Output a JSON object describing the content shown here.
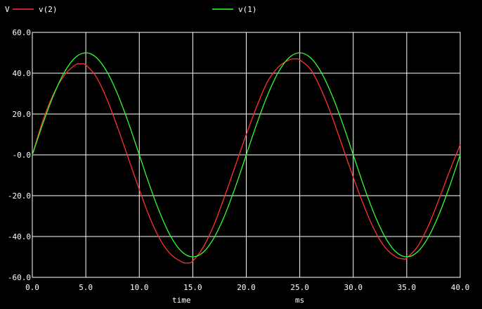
{
  "chart_data": {
    "type": "line",
    "ylabel": "V",
    "xlabel": "time",
    "xunit": "ms",
    "xlim": [
      0,
      40
    ],
    "ylim": [
      -60,
      60
    ],
    "xticks": [
      "0.0",
      "5.0",
      "10.0",
      "15.0",
      "20.0",
      "25.0",
      "30.0",
      "35.0",
      "40.0"
    ],
    "yticks": [
      "60.0",
      "40.0",
      "20.0",
      "-0.0",
      "-20.0",
      "-40.0",
      "-60.0"
    ],
    "grid": true,
    "legend_position": "top",
    "series": [
      {
        "name": "v(2)",
        "color": "#ff3030",
        "x": [
          0,
          1,
          2,
          3,
          4,
          4.5,
          5,
          6,
          7,
          8,
          9,
          10,
          11,
          12,
          13,
          14,
          14.5,
          15,
          16,
          17,
          18,
          19,
          20,
          21,
          22,
          23,
          24,
          24.7,
          25,
          26,
          27,
          28,
          29,
          30,
          31,
          32,
          33,
          34,
          34.7,
          35,
          36,
          37,
          38,
          39,
          40
        ],
        "y": [
          0,
          17,
          30,
          39,
          44,
          44.5,
          44,
          38,
          27,
          13,
          -2,
          -17,
          -31,
          -42,
          -49,
          -52.5,
          -53,
          -52,
          -45,
          -34,
          -20,
          -5,
          10,
          24,
          36,
          43,
          46.5,
          47,
          46.5,
          42,
          32,
          19,
          4,
          -11,
          -25,
          -37,
          -45.5,
          -50,
          -51,
          -50.5,
          -45,
          -35,
          -22,
          -8,
          5
        ]
      },
      {
        "name": "v(1)",
        "color": "#30ff30",
        "x": [
          0,
          1,
          2,
          3,
          4,
          5,
          6,
          7,
          8,
          9,
          10,
          11,
          12,
          13,
          14,
          15,
          16,
          17,
          18,
          19,
          20,
          21,
          22,
          23,
          24,
          25,
          26,
          27,
          28,
          29,
          30,
          31,
          32,
          33,
          34,
          35,
          36,
          37,
          38,
          39,
          40
        ],
        "y": [
          0,
          15.5,
          29.4,
          40.5,
          47.6,
          50,
          47.6,
          40.5,
          29.4,
          15.5,
          0,
          -15.5,
          -29.4,
          -40.5,
          -47.6,
          -50,
          -47.6,
          -40.5,
          -29.4,
          -15.5,
          0,
          15.5,
          29.4,
          40.5,
          47.6,
          50,
          47.6,
          40.5,
          29.4,
          15.5,
          0,
          -15.5,
          -29.4,
          -40.5,
          -47.6,
          -50,
          -47.6,
          -40.5,
          -29.4,
          -15.5,
          0
        ]
      }
    ]
  }
}
